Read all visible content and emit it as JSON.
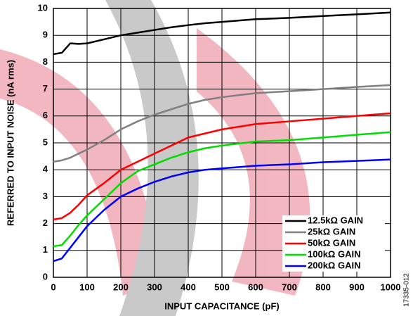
{
  "chart_data": {
    "type": "line",
    "x_label": "INPUT CAPACITANCE (pF)",
    "y_label": "REFERRED TO INPUT NOISE (nA rms)",
    "figure_id": "17335-012",
    "x": [
      0,
      25,
      50,
      75,
      100,
      150,
      200,
      250,
      300,
      350,
      400,
      450,
      500,
      600,
      700,
      800,
      900,
      1000
    ],
    "series": [
      {
        "name": "12.5kΩ GAIN",
        "color": "#000000",
        "values": [
          8.3,
          8.35,
          8.7,
          8.68,
          8.7,
          8.85,
          9.0,
          9.1,
          9.2,
          9.3,
          9.38,
          9.45,
          9.5,
          9.6,
          9.65,
          9.72,
          9.78,
          9.85
        ]
      },
      {
        "name": "25kΩ GAIN",
        "color": "#808080",
        "values": [
          4.3,
          4.35,
          4.45,
          4.6,
          4.75,
          5.1,
          5.5,
          5.8,
          6.05,
          6.25,
          6.45,
          6.6,
          6.7,
          6.85,
          6.92,
          7.0,
          7.08,
          7.15
        ]
      },
      {
        "name": "50kΩ GAIN",
        "color": "#ff0000",
        "values": [
          2.15,
          2.2,
          2.4,
          2.7,
          3.05,
          3.5,
          4.0,
          4.3,
          4.6,
          4.9,
          5.2,
          5.35,
          5.5,
          5.7,
          5.8,
          5.9,
          6.0,
          6.1
        ]
      },
      {
        "name": "100kΩ GAIN",
        "color": "#00dd00",
        "values": [
          1.15,
          1.2,
          1.55,
          1.95,
          2.3,
          2.9,
          3.5,
          3.95,
          4.2,
          4.45,
          4.65,
          4.8,
          4.9,
          5.05,
          5.1,
          5.2,
          5.3,
          5.4
        ]
      },
      {
        "name": "200kΩ GAIN",
        "color": "#0000ff",
        "values": [
          0.6,
          0.7,
          1.1,
          1.5,
          1.9,
          2.5,
          3.0,
          3.3,
          3.55,
          3.75,
          3.9,
          4.0,
          4.05,
          4.15,
          4.2,
          4.28,
          4.33,
          4.38
        ]
      }
    ],
    "xlim": [
      0,
      1000
    ],
    "xticks": [
      0,
      100,
      200,
      300,
      400,
      500,
      600,
      700,
      800,
      900,
      1000
    ],
    "ylim": [
      0,
      10
    ],
    "yticks": [
      0,
      1,
      2,
      3,
      4,
      5,
      6,
      7,
      8,
      9,
      10
    ],
    "grid": true,
    "legend": "lower right"
  }
}
